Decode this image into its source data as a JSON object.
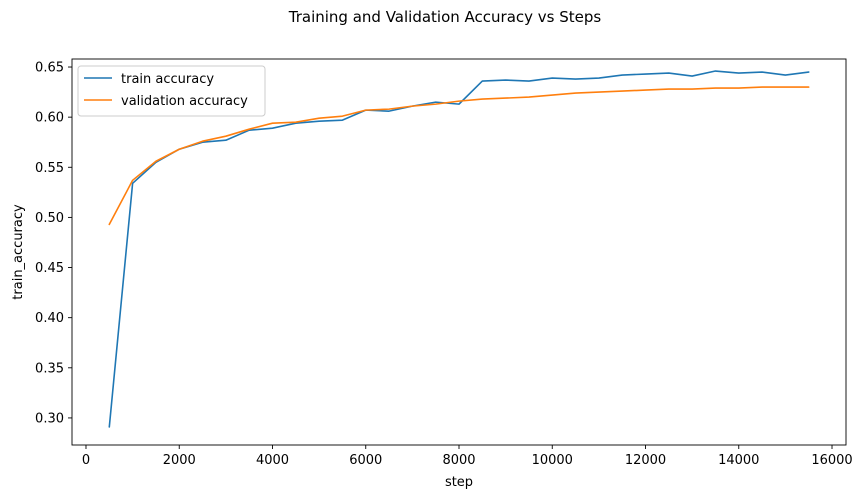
{
  "chart_data": {
    "type": "line",
    "title": "Training and Validation Accuracy vs Steps",
    "xlabel": "step",
    "ylabel": "train_accuracy",
    "xlim": [
      -300,
      16300
    ],
    "ylim": [
      0.273,
      0.658
    ],
    "xticks": [
      0,
      2000,
      4000,
      6000,
      8000,
      10000,
      12000,
      14000,
      16000
    ],
    "yticks": [
      0.3,
      0.35,
      0.4,
      0.45,
      0.5,
      0.55,
      0.6,
      0.65
    ],
    "grid": false,
    "legend_position": "top-left",
    "x": [
      500,
      1000,
      1500,
      2000,
      2500,
      3000,
      3500,
      4000,
      4500,
      5000,
      5500,
      6000,
      6500,
      7000,
      7500,
      8000,
      8500,
      9000,
      9500,
      10000,
      10500,
      11000,
      11500,
      12000,
      12500,
      13000,
      13500,
      14000,
      14500,
      15000,
      15500
    ],
    "series": [
      {
        "name": "train accuracy",
        "color": "#1f77b4",
        "values": [
          0.291,
          0.534,
          0.555,
          0.568,
          0.575,
          0.577,
          0.587,
          0.589,
          0.594,
          0.596,
          0.597,
          0.607,
          0.606,
          0.611,
          0.615,
          0.613,
          0.636,
          0.637,
          0.636,
          0.639,
          0.638,
          0.639,
          0.642,
          0.643,
          0.644,
          0.641,
          0.646,
          0.644,
          0.645,
          0.642,
          0.645
        ]
      },
      {
        "name": "validation accuracy",
        "color": "#ff7f0e",
        "values": [
          0.493,
          0.537,
          0.556,
          0.568,
          0.576,
          0.581,
          0.588,
          0.594,
          0.595,
          0.599,
          0.601,
          0.607,
          0.608,
          0.611,
          0.613,
          0.616,
          0.618,
          0.619,
          0.62,
          0.622,
          0.624,
          0.625,
          0.626,
          0.627,
          0.628,
          0.628,
          0.629,
          0.629,
          0.63,
          0.63,
          0.63
        ]
      }
    ]
  }
}
